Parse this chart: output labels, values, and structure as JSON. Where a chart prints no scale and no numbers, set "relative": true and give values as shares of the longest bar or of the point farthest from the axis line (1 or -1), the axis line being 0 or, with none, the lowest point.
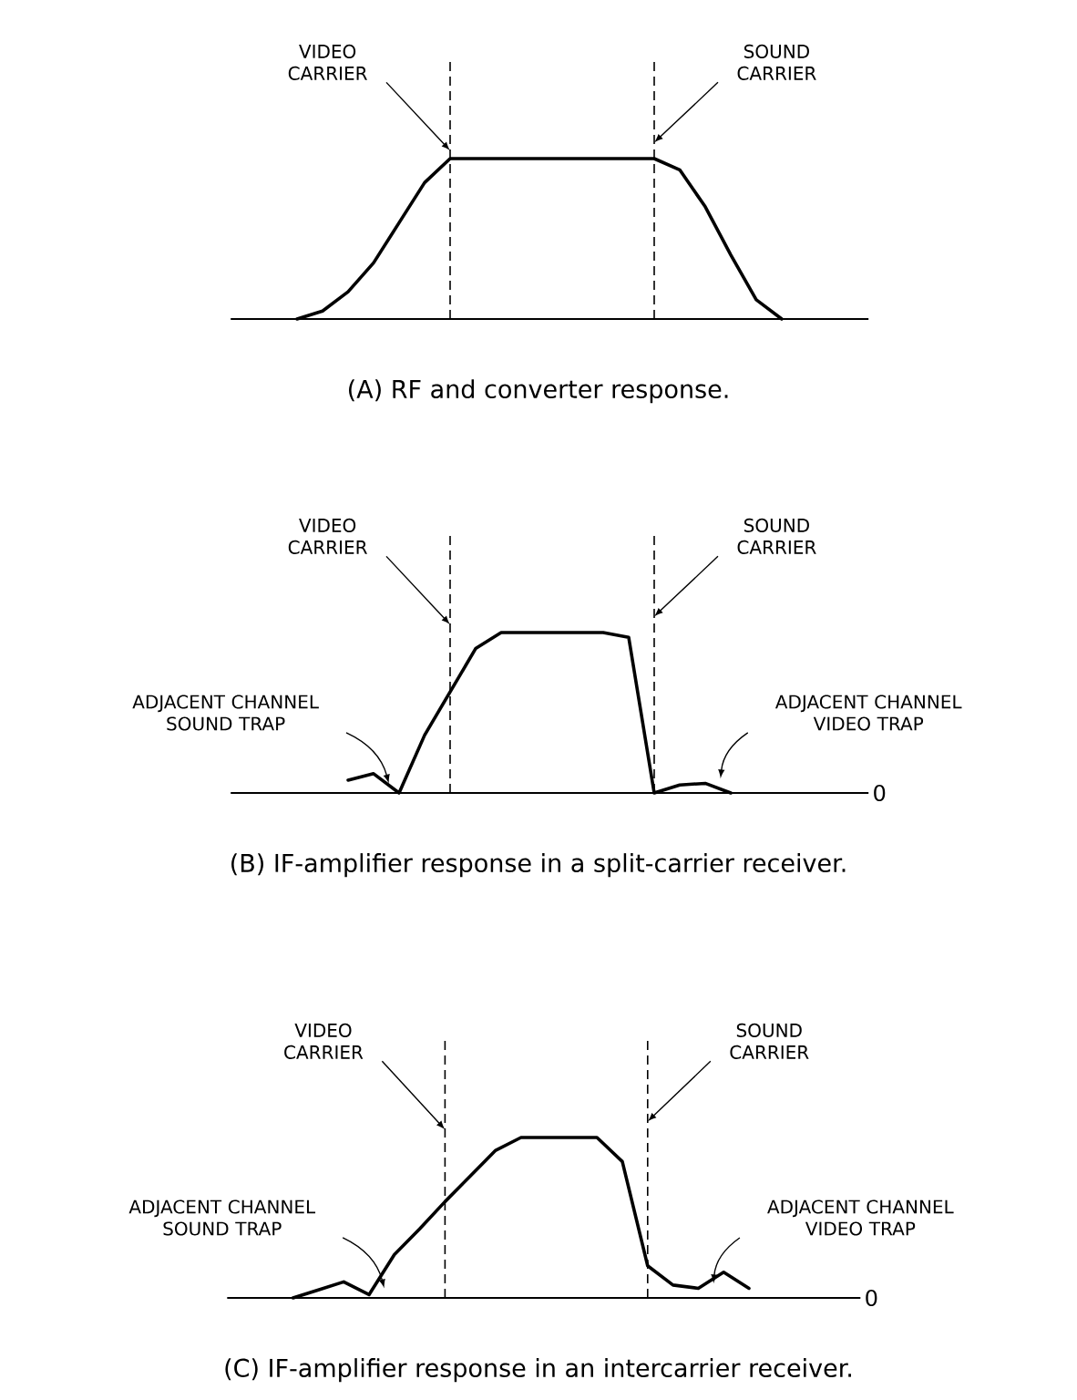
{
  "chart_data": [
    {
      "type": "line",
      "title": "(A) RF and converter response.",
      "relative": true,
      "categories": [
        null,
        null,
        null,
        null,
        null,
        null,
        null,
        null,
        null,
        null,
        null,
        null,
        null,
        null,
        null,
        null,
        null,
        null,
        null,
        null,
        null,
        null,
        null,
        null,
        null
      ],
      "series": [
        {
          "color": "#000000",
          "values": [
            null,
            null,
            0,
            0.05,
            0.17,
            0.35,
            0.6,
            0.85,
            1,
            1,
            1,
            1,
            1,
            1,
            1,
            1,
            1,
            0.93,
            0.7,
            0.4,
            0.12,
            0,
            null,
            null,
            null
          ]
        }
      ],
      "annotations": [
        "VIDEO CARRIER",
        "SOUND CARRIER"
      ]
    },
    {
      "type": "line",
      "title": "(B) IF-amplifier response in a split-carrier receiver.",
      "relative": true,
      "categories": [
        null,
        null,
        null,
        null,
        null,
        null,
        null,
        null,
        null,
        null,
        null,
        null,
        null,
        null,
        null,
        null,
        null,
        null,
        null,
        null,
        null,
        null,
        null,
        null,
        null
      ],
      "series": [
        {
          "color": "#000000",
          "values": [
            null,
            null,
            null,
            null,
            0.08,
            0.12,
            0,
            0.36,
            0.63,
            0.9,
            1,
            1,
            1,
            1,
            1,
            0.97,
            0,
            0.05,
            0.06,
            0,
            null,
            null,
            null,
            null,
            null
          ]
        }
      ],
      "annotations": [
        "VIDEO CARRIER",
        "SOUND CARRIER",
        "ADJACENT CHANNEL SOUND TRAP",
        "ADJACENT CHANNEL VIDEO TRAP",
        "0"
      ]
    },
    {
      "type": "line",
      "title": "(C) IF-amplifier response in an intercarrier receiver.",
      "relative": true,
      "categories": [
        null,
        null,
        null,
        null,
        null,
        null,
        null,
        null,
        null,
        null,
        null,
        null,
        null,
        null,
        null,
        null,
        null,
        null,
        null,
        null,
        null,
        null,
        null,
        null,
        null
      ],
      "series": [
        {
          "color": "#000000",
          "values": [
            null,
            null,
            0,
            0.05,
            0.1,
            0.02,
            0.27,
            0.43,
            0.6,
            0.76,
            0.92,
            1,
            1,
            1,
            1,
            0.85,
            0.2,
            0.08,
            0.06,
            0.16,
            0.06,
            null,
            null,
            null,
            null
          ]
        }
      ],
      "annotations": [
        "VIDEO CARRIER",
        "SOUND CARRIER",
        "ADJACENT CHANNEL SOUND TRAP",
        "ADJACENT CHANNEL VIDEO TRAP",
        "0"
      ]
    }
  ]
}
